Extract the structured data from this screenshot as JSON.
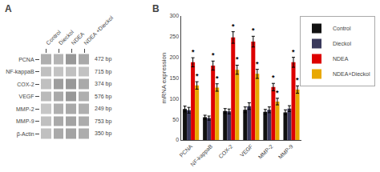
{
  "chart_data": [
    {
      "type": "heatmap",
      "title": "A",
      "x": [
        "Control",
        "Dieckol",
        "NDEA",
        "NDEA +Dieckol"
      ],
      "y": [
        "PCNA",
        "NF-kappaB",
        "COX-2",
        "VEGF",
        "MMP-2",
        "MMP-9",
        "β-Actin"
      ],
      "cells": [
        [
          0.7,
          0.65,
          0.9,
          0.75
        ],
        [
          0.55,
          0.52,
          0.55,
          0.53
        ],
        [
          0.55,
          0.85,
          0.9,
          0.75
        ],
        [
          0.6,
          0.75,
          0.9,
          0.7
        ],
        [
          0.5,
          0.7,
          0.75,
          0.7
        ],
        [
          0.55,
          0.75,
          0.8,
          0.72
        ],
        [
          0.55,
          0.75,
          0.8,
          0.72
        ]
      ],
      "zlim": [
        0,
        1
      ],
      "annotations": [
        {
          "text": "472 bp",
          "y": "PCNA"
        },
        {
          "text": "715 bp",
          "y": "NF-kappaB"
        },
        {
          "text": "374 bp",
          "y": "COX-2"
        },
        {
          "text": "576 bp",
          "y": "VEGF"
        },
        {
          "text": "249 bp",
          "y": "MMP-2"
        },
        {
          "text": "753 bp",
          "y": "MMP-9"
        },
        {
          "text": "350 bp",
          "y": "β-Actin"
        }
      ],
      "grid": false
    },
    {
      "type": "bar",
      "title": "B",
      "categories": [
        "PCNA",
        "NF-kappaB",
        "COX-2",
        "VEGF",
        "MMP-2",
        "MMP-9"
      ],
      "ylabel": "mRNA expression",
      "ylim": [
        0,
        300
      ],
      "yticks": [
        0,
        50,
        100,
        150,
        200,
        250,
        300
      ],
      "series": [
        {
          "name": "Control",
          "color": "#111111",
          "values": [
            75,
            55,
            70,
            73,
            68,
            67
          ],
          "errors": [
            7,
            5,
            6,
            7,
            6,
            6
          ]
        },
        {
          "name": "Dieckol",
          "color": "#3a3a5c",
          "values": [
            72,
            53,
            69,
            82,
            73,
            76
          ],
          "errors": [
            7,
            5,
            6,
            8,
            7,
            7
          ]
        },
        {
          "name": "NDEA",
          "color": "#dd0000",
          "values": [
            188,
            180,
            248,
            238,
            128,
            188
          ],
          "errors": [
            11,
            11,
            14,
            13,
            9,
            12
          ]
        },
        {
          "name": "NDEA+Dieckol",
          "color": "#e8a800",
          "values": [
            132,
            127,
            170,
            160,
            93,
            122
          ],
          "errors": [
            9,
            9,
            11,
            11,
            8,
            9
          ]
        }
      ],
      "annotations": [
        {
          "text": "*",
          "category": "PCNA",
          "series": "NDEA"
        },
        {
          "text": "*",
          "category": "NF-kappaB",
          "series": "NDEA"
        },
        {
          "text": "*",
          "category": "COX-2",
          "series": "NDEA"
        },
        {
          "text": "*",
          "category": "VEGF",
          "series": "NDEA"
        },
        {
          "text": "*",
          "category": "MMP-2",
          "series": "NDEA"
        },
        {
          "text": "*",
          "category": "MMP-9",
          "series": "NDEA"
        },
        {
          "text": "*",
          "category": "PCNA",
          "series": "NDEA+Dieckol"
        },
        {
          "text": "*",
          "category": "NF-kappaB",
          "series": "NDEA+Dieckol"
        },
        {
          "text": "*",
          "category": "COX-2",
          "series": "NDEA+Dieckol"
        },
        {
          "text": "*",
          "category": "VEGF",
          "series": "NDEA+Dieckol"
        },
        {
          "text": "*",
          "category": "MMP-2",
          "series": "NDEA+Dieckol"
        },
        {
          "text": "*",
          "category": "MMP-9",
          "series": "NDEA+Dieckol"
        }
      ],
      "legend": "upper right",
      "grid": false
    }
  ]
}
